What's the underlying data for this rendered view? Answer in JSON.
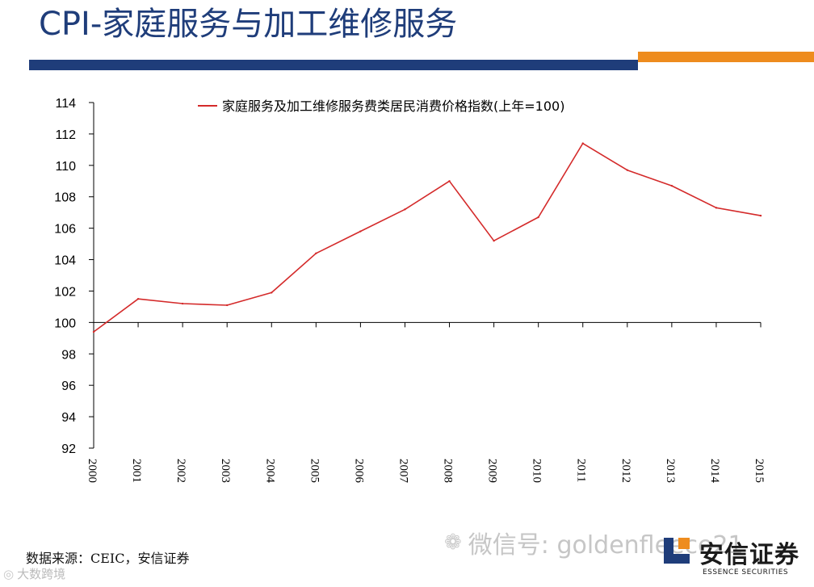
{
  "slide": {
    "title": "CPI-家庭服务与加工维修服务"
  },
  "chart_data": {
    "type": "line",
    "title": "",
    "xlabel": "",
    "ylabel": "",
    "x": [
      "2000",
      "2001",
      "2002",
      "2003",
      "2004",
      "2005",
      "2006",
      "2007",
      "2008",
      "2009",
      "2010",
      "2011",
      "2012",
      "2013",
      "2014",
      "2015"
    ],
    "series": [
      {
        "name": "家庭服务及加工维修服务费类居民消费价格指数(上年=100)",
        "color": "#d42a2a",
        "values": [
          99.4,
          101.5,
          101.2,
          101.1,
          101.9,
          104.4,
          105.8,
          107.2,
          109.0,
          105.2,
          106.7,
          111.4,
          109.7,
          108.7,
          107.3,
          106.8
        ]
      }
    ],
    "ylim": [
      92,
      114
    ],
    "y_ticks": [
      "114",
      "112",
      "110",
      "108",
      "106",
      "104",
      "102",
      "100",
      "98",
      "96",
      "94",
      "92"
    ],
    "x_axis_crosses_at": 100,
    "legend_position": "top-center",
    "grid": false
  },
  "footer": {
    "source": "数据来源：CEIC，安信证券",
    "watermark_left": "大数跨境",
    "watermark_left_icon": "weibo-icon",
    "watermark_mid": "微信号: goldenfleece21",
    "watermark_mid_icon": "wechat-icon"
  },
  "logo": {
    "name": "安信证券",
    "name_en": "ESSENCE SECURITIES"
  },
  "colors": {
    "title": "#1f3d7a",
    "bar_blue": "#1f3d7a",
    "bar_orange": "#ee8c1e",
    "series": "#d42a2a"
  }
}
